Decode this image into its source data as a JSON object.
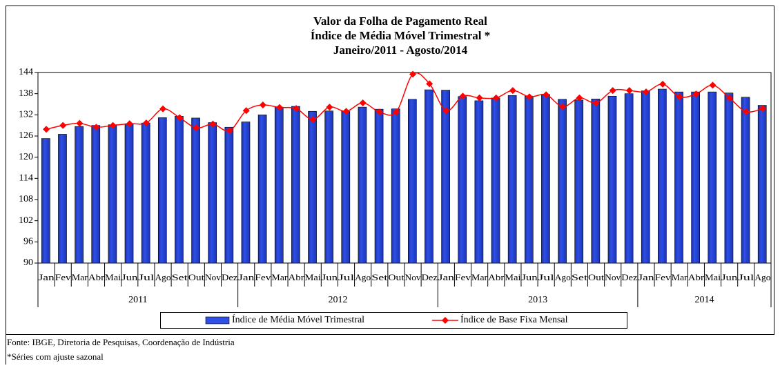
{
  "chart_data": {
    "type": "bar-line",
    "title_lines": [
      "Valor da Folha de Pagamento Real",
      "Índice de Média Móvel Trimestral *",
      "Janeiro/2011 - Agosto/2014"
    ],
    "categories": [
      "Jan",
      "Fev",
      "Mar",
      "Abr",
      "Mai",
      "Jun",
      "Jul",
      "Ago",
      "Set",
      "Out",
      "Nov",
      "Dez",
      "Jan",
      "Fev",
      "Mar",
      "Abr",
      "Mai",
      "Jun",
      "Jul",
      "Ago",
      "Set",
      "Out",
      "Nov",
      "Dez",
      "Jan",
      "Fev",
      "Mar",
      "Abr",
      "Mai",
      "Jun",
      "Jul",
      "Ago",
      "Set",
      "Out",
      "Nov",
      "Dez",
      "Jan",
      "Fev",
      "Mar",
      "Abr",
      "Mai",
      "Jun",
      "Jul",
      "Ago"
    ],
    "category_groups": [
      "2011",
      "2012",
      "2013",
      "2014"
    ],
    "series": [
      {
        "name": "Índice de Média Móvel Trimestral",
        "kind": "bar",
        "color": "#2f4fe6",
        "values": [
          125.3,
          126.5,
          128.7,
          129,
          129.2,
          129.5,
          129.7,
          131.2,
          131.6,
          131.1,
          129.8,
          128.5,
          130,
          132,
          134.2,
          134.4,
          133,
          133.1,
          133,
          134.2,
          133.6,
          133.7,
          136.4,
          139.1,
          139,
          137.2,
          136,
          136.8,
          137.5,
          137.3,
          137.8,
          136.4,
          136.2,
          136.5,
          137.3,
          138,
          138.8,
          139.3,
          138.5,
          138.5,
          138.5,
          138.2,
          137,
          134.7
        ]
      },
      {
        "name": "Índice de Base Fixa Mensal",
        "kind": "line",
        "color": "#ff0000",
        "values": [
          127.9,
          129,
          129.6,
          128.5,
          129,
          129.5,
          129.7,
          133.7,
          131.2,
          128.3,
          129.4,
          127.5,
          133.2,
          134.8,
          134.1,
          133.8,
          130.7,
          134.2,
          133,
          135.4,
          132.8,
          132.8,
          143.5,
          140.8,
          133.2,
          137.3,
          136.8,
          136.8,
          138.9,
          137.1,
          137.7,
          134.3,
          136.8,
          135.4,
          138.9,
          138.9,
          138.5,
          140.7,
          137.1,
          137.9,
          140.4,
          136.8,
          132.9,
          133.8
        ]
      }
    ],
    "ylim": [
      90,
      144
    ],
    "yticks": [
      90,
      96,
      102,
      108,
      114,
      120,
      126,
      132,
      138,
      144
    ],
    "notes": [
      "Fonte: IBGE, Diretoria de Pesquisas, Coordenação de Indústria",
      "*Séries com ajuste sazonal"
    ]
  }
}
